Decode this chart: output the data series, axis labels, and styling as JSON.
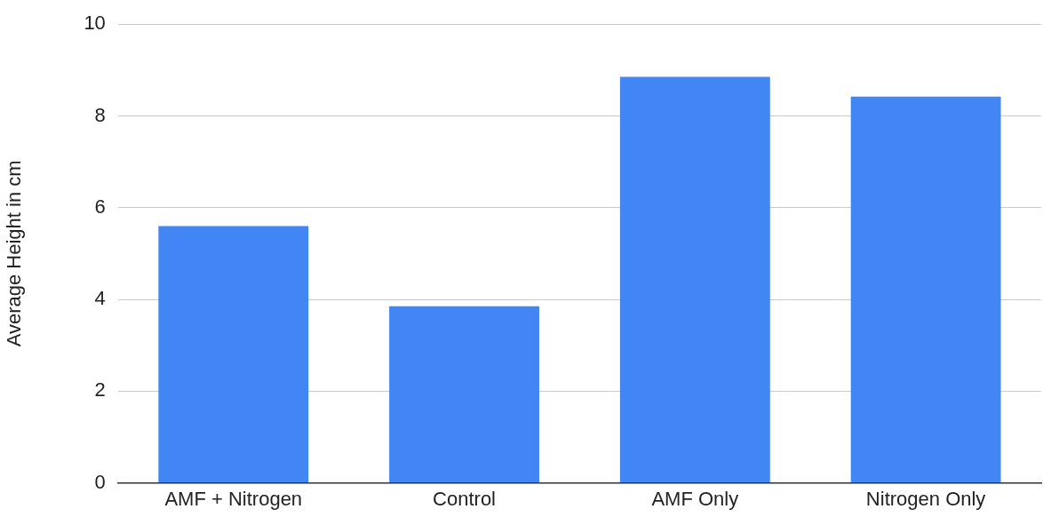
{
  "chart_data": {
    "type": "bar",
    "ylabel": "Average Height in cm",
    "categories": [
      "AMF + Nitrogen",
      "Control",
      "AMF Only",
      "Nitrogen Only"
    ],
    "values": [
      5.6,
      3.85,
      8.85,
      8.42
    ],
    "color": "#4285f4",
    "ylim": [
      0,
      10
    ],
    "yticks": [
      0,
      2,
      4,
      6,
      8,
      10
    ],
    "grid": "y",
    "legend": false
  }
}
